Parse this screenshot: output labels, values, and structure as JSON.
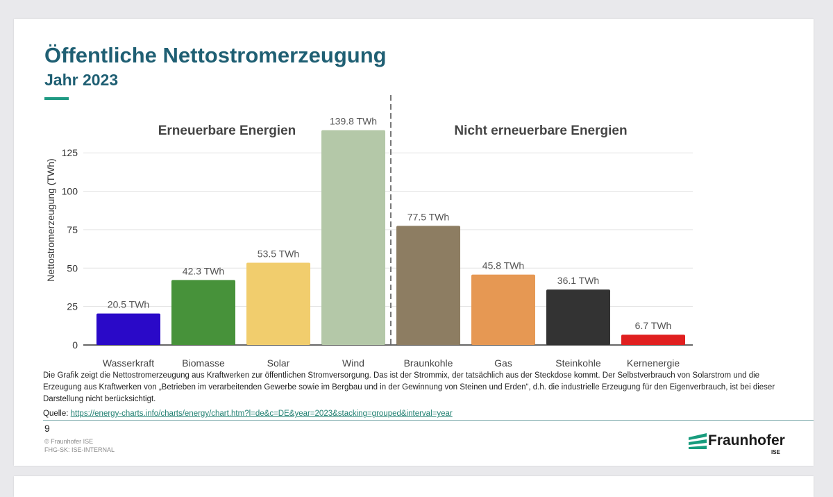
{
  "slide": {
    "title": "Öffentliche Nettostromerzeugung",
    "subtitle": "Jahr 2023",
    "footnote": "Die Grafik zeigt die Nettostromerzeugung aus Kraftwerken zur öffentlichen Stromversorgung. Das ist der Strommix, der tatsächlich aus der Steckdose kommt. Der Selbstverbrauch von Solarstrom und die Erzeugung aus Kraftwerken von „Betrieben im verarbeitenden Gewerbe sowie im Bergbau und in der Gewinnung von Steinen und Erden“, d.h. die industrielle Erzeugung für den Eigenverbrauch, ist bei dieser Darstellung nicht berücksichtigt.",
    "source_label": "Quelle:",
    "source_url": "https://energy-charts.info/charts/energy/chart.htm?l=de&c=DE&year=2023&stacking=grouped&interval=year",
    "page_number": "9",
    "copyright": "© Fraunhofer ISE",
    "classification": "FHG-SK: ISE-INTERNAL",
    "logo_text": "Fraunhofer",
    "logo_subtext": "ISE",
    "accent_color": "#1f9a83",
    "title_color": "#1f5f73"
  },
  "chart_data": {
    "type": "bar",
    "ylabel": "Nettostromerzeugung (TWh)",
    "ylim": [
      0,
      140
    ],
    "yticks": [
      0,
      25,
      50,
      75,
      100,
      125
    ],
    "grid": true,
    "unit": "TWh",
    "groups": [
      {
        "label": "Erneuerbare Energien",
        "categories": [
          "Wasserkraft",
          "Biomasse",
          "Solar",
          "Wind"
        ]
      },
      {
        "label": "Nicht erneuerbare Energien",
        "categories": [
          "Braunkohle",
          "Gas",
          "Steinkohle",
          "Kernenergie"
        ]
      }
    ],
    "categories": [
      "Wasserkraft",
      "Biomasse",
      "Solar",
      "Wind",
      "Braunkohle",
      "Gas",
      "Steinkohle",
      "Kernenergie"
    ],
    "values": [
      20.5,
      42.3,
      53.5,
      139.8,
      77.5,
      45.8,
      36.1,
      6.7
    ],
    "value_labels": [
      "20.5 TWh",
      "42.3 TWh",
      "53.5 TWh",
      "139.8 TWh",
      "77.5 TWh",
      "45.8 TWh",
      "36.1 TWh",
      "6.7 TWh"
    ],
    "colors": [
      "#2a09c8",
      "#47923a",
      "#f1cd6d",
      "#b4c8a8",
      "#8d7d62",
      "#e69853",
      "#333333",
      "#e01f1f"
    ]
  }
}
